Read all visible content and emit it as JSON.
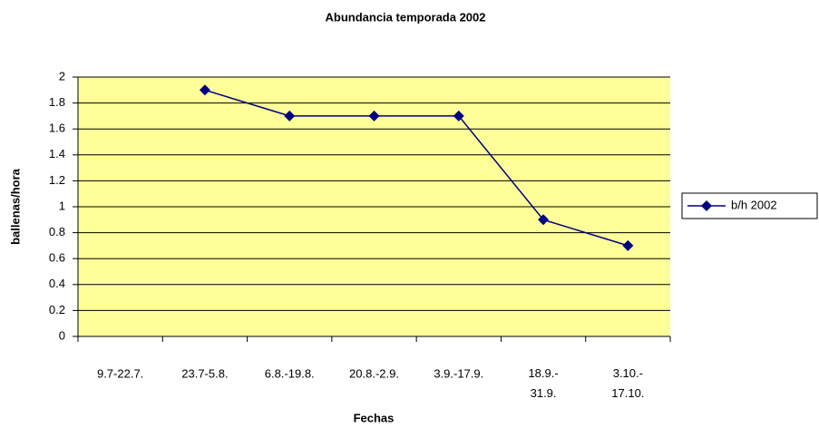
{
  "chart_data": {
    "type": "line",
    "title": "Abundancia temporada 2002",
    "x_label": "Fechas",
    "y_label": "ballenas/hora",
    "categories": [
      "9.7-22.7.",
      "23.7-5.8.",
      "6.8.-19.8.",
      "20.8.-2.9.",
      "3.9.-17.9.",
      "18.9.- 31.9.",
      "3.10.- 17.10."
    ],
    "series": [
      {
        "name": "b/h 2002",
        "color": "#000080",
        "values": [
          null,
          1.9,
          1.7,
          1.7,
          1.7,
          0.9,
          0.7
        ]
      }
    ],
    "ylim": [
      0,
      2
    ],
    "yticks": [
      0,
      0.2,
      0.4,
      0.6,
      0.8,
      1,
      1.2,
      1.4,
      1.6,
      1.8,
      2
    ],
    "grid": true,
    "legend": "right",
    "plot_background": "#ffff99"
  }
}
